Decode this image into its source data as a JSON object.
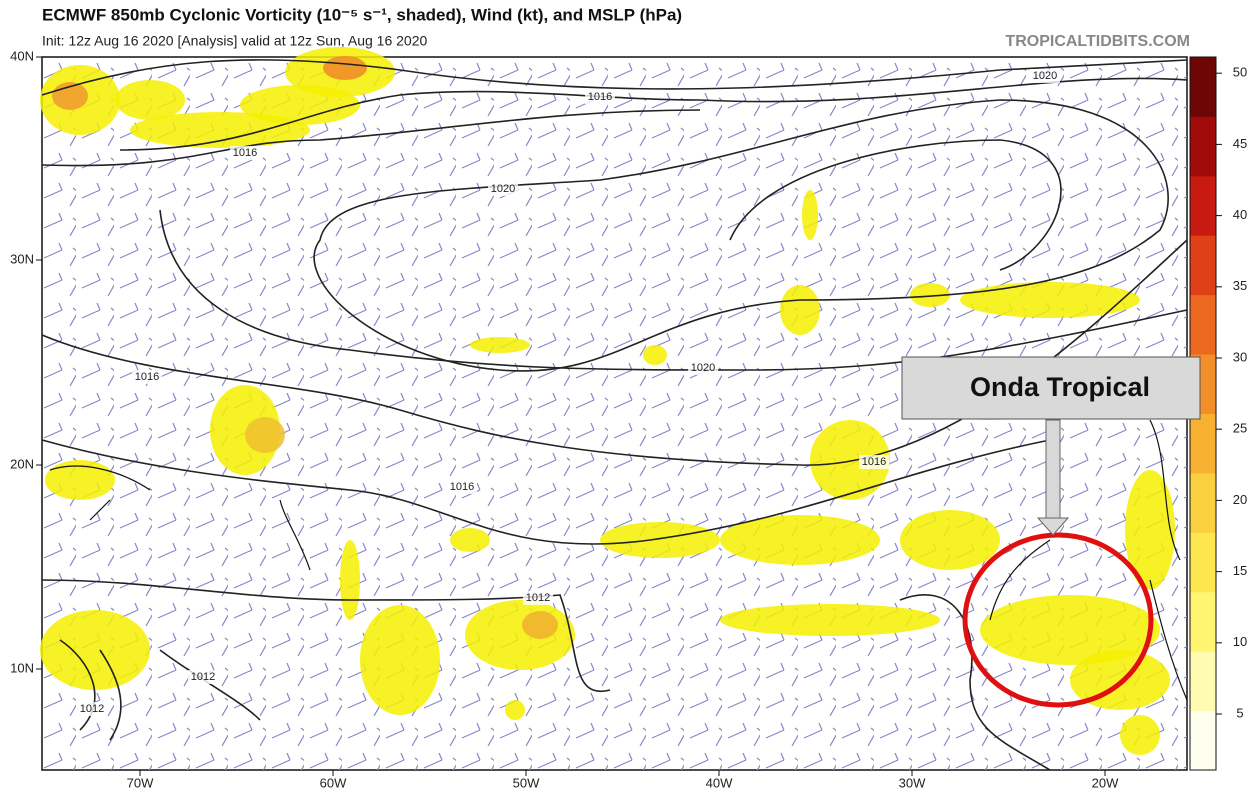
{
  "header": {
    "title": "ECMWF 850mb Cyclonic Vorticity (10⁻⁵ s⁻¹, shaded), Wind (kt), and MSLP (hPa)",
    "subtitle": "Init: 12z Aug 16 2020   [Analysis]   valid at 12z Sun, Aug 16 2020",
    "site": "TROPICALTIDBITS.COM"
  },
  "map": {
    "lat_labels": [
      "40N",
      "30N",
      "20N",
      "10N"
    ],
    "lon_labels": [
      "70W",
      "60W",
      "50W",
      "40W",
      "30W",
      "20W"
    ],
    "contour_labels": [
      "1016",
      "1020",
      "1016",
      "1020",
      "1016",
      "1020",
      "1016",
      "1016",
      "1012",
      "1012",
      "1012"
    ]
  },
  "colorbar": {
    "ticks": [
      5,
      10,
      15,
      20,
      25,
      30,
      35,
      40,
      45,
      50
    ]
  },
  "annotation": {
    "label": "Onda Tropical"
  }
}
